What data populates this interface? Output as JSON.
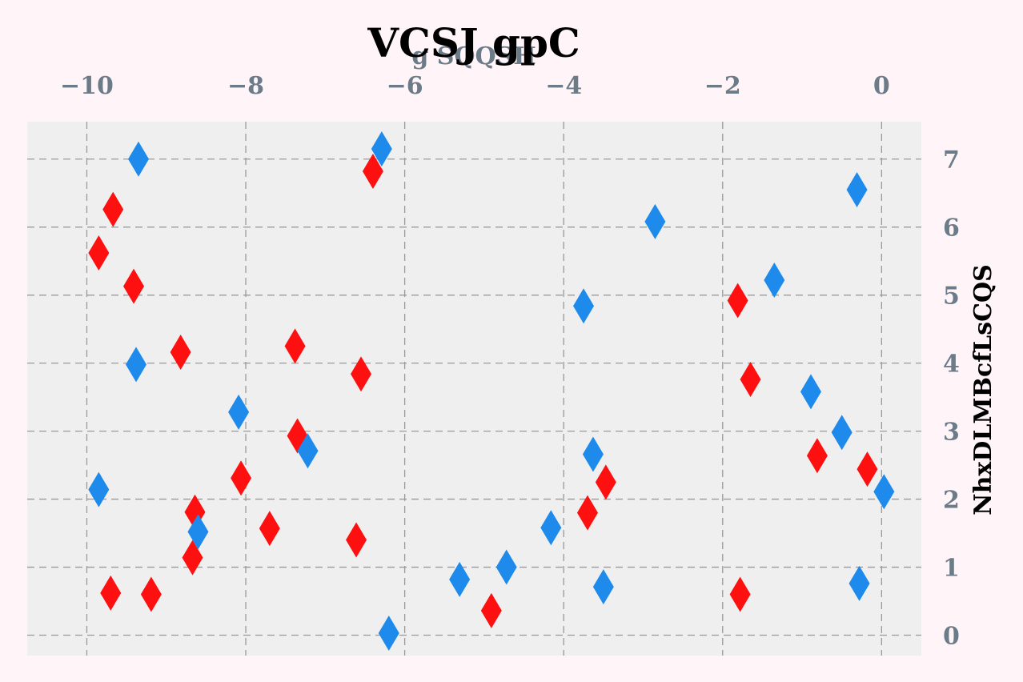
{
  "chart_data": {
    "type": "scatter",
    "title": "VCSJ gpC",
    "xlabel": "g SQQSH",
    "ylabel": "NhxDLMBcfLsCQS",
    "xlim": [
      -10.75,
      0.5
    ],
    "ylim": [
      -0.3,
      7.55
    ],
    "x_axis_position": "top",
    "y_axis_position": "right",
    "x_ticks": [
      -10,
      -8,
      -6,
      -4,
      -2,
      0
    ],
    "y_ticks": [
      0,
      1,
      2,
      3,
      4,
      5,
      6,
      7
    ],
    "x_tick_labels": [
      "−10",
      "−8",
      "−6",
      "−4",
      "−2",
      "0"
    ],
    "y_tick_labels": [
      "0",
      "1",
      "2",
      "3",
      "4",
      "5",
      "6",
      "7"
    ],
    "grid": true,
    "grid_style": "dashed",
    "marker": "thin_diamond",
    "colors": {
      "background": "#fff4f8",
      "plot_background": "#efefef",
      "grid": "#9a9a9a",
      "tick_text": "#6b7b88",
      "title_text": "#000000"
    },
    "series": [
      {
        "color": "#ff1010",
        "points": [
          [
            -9.67,
            6.26
          ],
          [
            -9.85,
            5.62
          ],
          [
            -9.41,
            5.13
          ],
          [
            -8.82,
            4.16
          ],
          [
            -7.38,
            4.25
          ],
          [
            -6.55,
            3.84
          ],
          [
            -7.35,
            2.93
          ],
          [
            -8.06,
            2.31
          ],
          [
            -8.64,
            1.81
          ],
          [
            -7.7,
            1.57
          ],
          [
            -8.67,
            1.14
          ],
          [
            -6.61,
            1.4
          ],
          [
            -9.7,
            0.62
          ],
          [
            -9.19,
            0.6
          ],
          [
            -6.4,
            6.82
          ],
          [
            -4.91,
            0.36
          ],
          [
            -3.7,
            1.8
          ],
          [
            -3.47,
            2.25
          ],
          [
            -1.81,
            4.92
          ],
          [
            -1.65,
            3.76
          ],
          [
            -0.81,
            2.64
          ],
          [
            -0.18,
            2.44
          ],
          [
            -1.78,
            0.6
          ]
        ]
      },
      {
        "color": "#1e8bec",
        "points": [
          [
            -9.35,
            7.0
          ],
          [
            -6.29,
            7.15
          ],
          [
            -9.38,
            3.98
          ],
          [
            -8.09,
            3.28
          ],
          [
            -7.22,
            2.71
          ],
          [
            -9.85,
            2.14
          ],
          [
            -8.6,
            1.52
          ],
          [
            -6.2,
            0.03
          ],
          [
            -5.31,
            0.82
          ],
          [
            -4.72,
            1.0
          ],
          [
            -4.16,
            1.58
          ],
          [
            -3.75,
            4.84
          ],
          [
            -3.63,
            2.66
          ],
          [
            -3.5,
            0.71
          ],
          [
            -2.85,
            6.08
          ],
          [
            -1.35,
            5.22
          ],
          [
            -0.89,
            3.58
          ],
          [
            -0.5,
            2.98
          ],
          [
            -0.31,
            6.55
          ],
          [
            -0.28,
            0.76
          ],
          [
            0.03,
            2.11
          ]
        ]
      }
    ]
  }
}
